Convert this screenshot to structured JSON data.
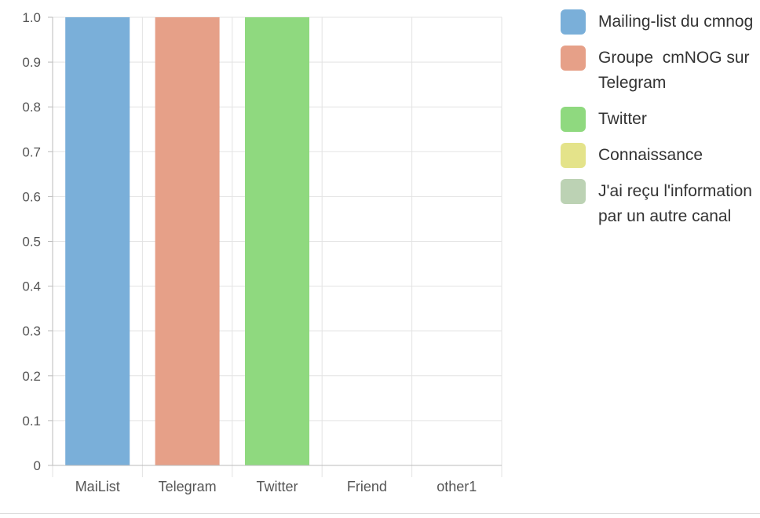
{
  "chart_data": {
    "type": "bar",
    "categories": [
      "MaiList",
      "Telegram",
      "Twitter",
      "Friend",
      "other1"
    ],
    "values": [
      1,
      1,
      1,
      0,
      0
    ],
    "yticks": [
      "0",
      "0.1",
      "0.2",
      "0.3",
      "0.4",
      "0.5",
      "0.6",
      "0.7",
      "0.8",
      "0.9",
      "1.0"
    ],
    "ylim": [
      0,
      1
    ],
    "grid": true,
    "legend_position": "right",
    "colors": [
      "#7aafd9",
      "#e6a088",
      "#8fd97f",
      "#e4e38a",
      "#bcd2b4"
    ],
    "legend": [
      "Mailing-list du cmnog",
      "Groupe  cmNOG sur Telegram",
      "Twitter",
      "Connaissance",
      "J'ai reçu l'information par un autre canal"
    ]
  }
}
